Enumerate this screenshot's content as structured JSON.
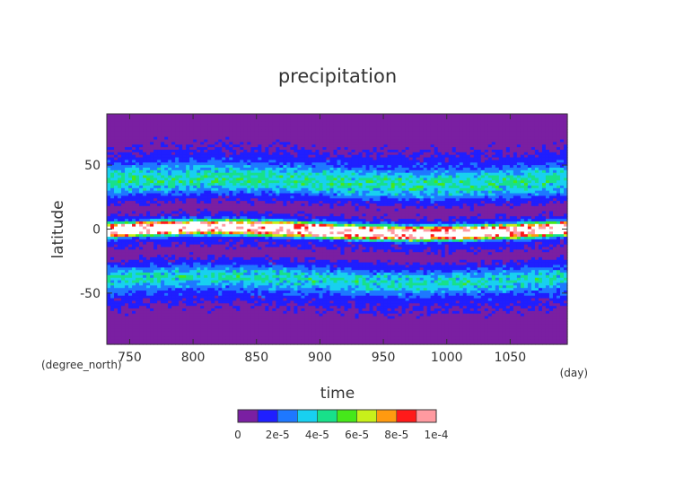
{
  "chart_data": {
    "type": "heatmap",
    "title": "precipitation",
    "xlabel": "time",
    "ylabel": "latitude",
    "x_unit": "(day)",
    "y_unit": "(degree_north)",
    "xlim": [
      732,
      1095
    ],
    "ylim": [
      -90,
      90
    ],
    "x_ticks": [
      750,
      800,
      850,
      900,
      950,
      1000,
      1050
    ],
    "y_ticks": [
      -50,
      0,
      50
    ],
    "colorbar": {
      "levels": [
        0,
        1e-05,
        2e-05,
        3e-05,
        4e-05,
        5e-05,
        6e-05,
        7e-05,
        8e-05,
        9e-05,
        0.0001
      ],
      "labels": [
        "0",
        "2e-5",
        "4e-5",
        "6e-5",
        "8e-5",
        "1e-4"
      ],
      "colors": [
        "#7a1fa2",
        "#1f1fff",
        "#1e78ff",
        "#18d0f0",
        "#18e08a",
        "#46e81a",
        "#c8f01a",
        "#ff9a10",
        "#ff1a1a",
        "#ff9aa0"
      ],
      "over_color": "#ffffff"
    },
    "profile": {
      "latitude": [
        -90,
        -80,
        -70,
        -60,
        -55,
        -50,
        -45,
        -40,
        -35,
        -30,
        -25,
        -20,
        -15,
        -10,
        -8,
        -6,
        -4,
        -2,
        0,
        2,
        4,
        6,
        8,
        10,
        15,
        20,
        25,
        30,
        35,
        40,
        45,
        50,
        55,
        60,
        70,
        80,
        90
      ],
      "precip": [
        3e-06,
        4e-06,
        6e-06,
        1e-05,
        1.4e-05,
        2e-05,
        3.2e-05,
        4.2e-05,
        3.4e-05,
        1.8e-05,
        1e-05,
        5e-06,
        1e-05,
        1.4e-05,
        2.2e-05,
        6e-05,
        0.00011,
        0.00012,
        0.00012,
        0.00011,
        6e-05,
        2.2e-05,
        1.4e-05,
        1e-05,
        5e-06,
        1e-05,
        1.8e-05,
        3.4e-05,
        4.2e-05,
        4.2e-05,
        3.2e-05,
        2e-05,
        1.4e-05,
        1e-05,
        6e-06,
        4e-06,
        3e-06
      ]
    }
  }
}
